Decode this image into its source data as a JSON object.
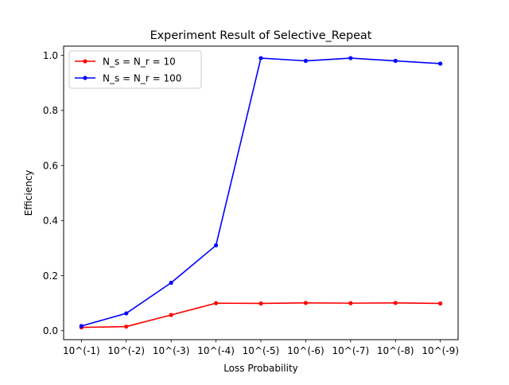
{
  "chart_data": {
    "type": "line",
    "title": "Experiment Result of Selective_Repeat",
    "xlabel": "Loss Probability",
    "ylabel": "Efficiency",
    "categories": [
      "10^(-1)",
      "10^(-2)",
      "10^(-3)",
      "10^(-4)",
      "10^(-5)",
      "10^(-6)",
      "10^(-7)",
      "10^(-8)",
      "10^(-9)"
    ],
    "ylim": [
      -0.0325,
      1.0335
    ],
    "yticks": [
      0.0,
      0.2,
      0.4,
      0.6,
      0.8,
      1.0
    ],
    "ytick_labels": [
      "0.0",
      "0.2",
      "0.4",
      "0.6",
      "0.8",
      "1.0"
    ],
    "grid": false,
    "legend_position": "upper-left",
    "series": [
      {
        "name": "N_s = N_r = 10",
        "color": "#ff0000",
        "marker": "dot",
        "values": [
          0.012,
          0.015,
          0.057,
          0.1,
          0.099,
          0.101,
          0.1,
          0.101,
          0.099
        ]
      },
      {
        "name": "N_s = N_r = 100",
        "color": "#0000ff",
        "marker": "dot",
        "values": [
          0.017,
          0.063,
          0.174,
          0.31,
          0.99,
          0.98,
          0.99,
          0.98,
          0.97
        ]
      }
    ]
  }
}
